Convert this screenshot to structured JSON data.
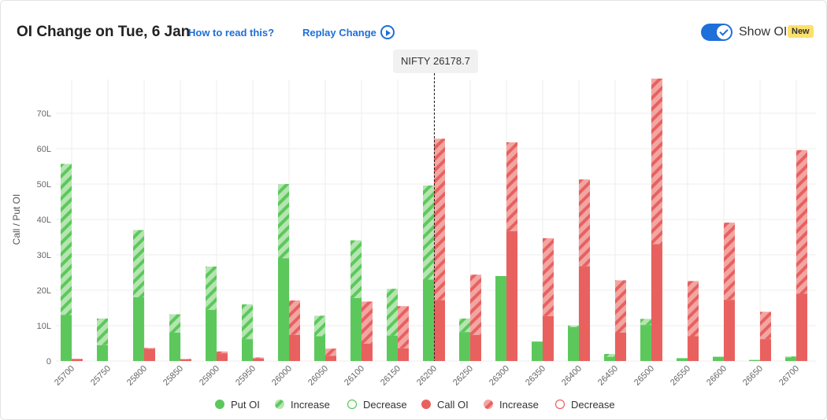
{
  "header": {
    "title": "OI Change on Tue, 6 Jan",
    "how_to_read": "How to read this?",
    "replay": "Replay Change",
    "show_oi_label": "Show OI",
    "show_oi_on": true,
    "badge": "New"
  },
  "spot_label": "NIFTY 26178.7",
  "colors": {
    "put": "#5cc85c",
    "put_light": "#b5e5b0",
    "call": "#e8615f",
    "call_light": "#f2a6a3",
    "accent": "#1e6fd9"
  },
  "legend": [
    {
      "label": "Put OI",
      "style": "put-solid"
    },
    {
      "label": "Increase",
      "style": "put-hatch"
    },
    {
      "label": "Decrease",
      "style": "put-outline"
    },
    {
      "label": "Call OI",
      "style": "call-solid"
    },
    {
      "label": "Increase",
      "style": "call-hatch"
    },
    {
      "label": "Decrease",
      "style": "call-outline"
    }
  ],
  "chart_data": {
    "type": "bar",
    "ylabel": "Call / Put OI",
    "ylim": [
      0,
      80
    ],
    "yticks": [
      "0",
      "10L",
      "20L",
      "30L",
      "40L",
      "50L",
      "60L",
      "70L"
    ],
    "ytick_values": [
      0,
      10,
      20,
      30,
      40,
      50,
      60,
      70
    ],
    "grid": true,
    "spot_category": "26200",
    "categories": [
      "25700",
      "25750",
      "25800",
      "25850",
      "25900",
      "25950",
      "26000",
      "26050",
      "26100",
      "26150",
      "26200",
      "26250",
      "26300",
      "26350",
      "26400",
      "26450",
      "26500",
      "26550",
      "26600",
      "26650",
      "26700"
    ],
    "series": [
      {
        "name": "Put OI",
        "values": [
          13,
          4.5,
          18,
          8,
          14.5,
          6.2,
          29,
          7,
          17.8,
          7.2,
          23,
          8.2,
          24,
          5.5,
          9.6,
          1.2,
          10.2,
          0.8,
          1.2,
          0.3,
          1
        ]
      },
      {
        "name": "Put OI Increase",
        "values": [
          42.7,
          7.5,
          19,
          5.2,
          12.2,
          9.8,
          21,
          5.8,
          16.3,
          13.2,
          26.6,
          3.8,
          0,
          0,
          0.4,
          0.8,
          1.7,
          0,
          0,
          0,
          0.3
        ]
      },
      {
        "name": "Call OI",
        "values": [
          0.6,
          0,
          3.5,
          0.5,
          2.2,
          0.7,
          7.4,
          1.5,
          4.9,
          3.6,
          17.2,
          7.4,
          36.7,
          12.7,
          26.8,
          8,
          33,
          7,
          17.3,
          6.2,
          19
        ]
      },
      {
        "name": "Call OI Increase",
        "values": [
          0,
          0,
          0.2,
          0.1,
          0.5,
          0.3,
          9.7,
          2,
          11.9,
          11.9,
          45.6,
          17,
          25.1,
          22,
          24.5,
          14.8,
          46.8,
          15.6,
          21.8,
          7.7,
          40.6
        ]
      }
    ]
  }
}
